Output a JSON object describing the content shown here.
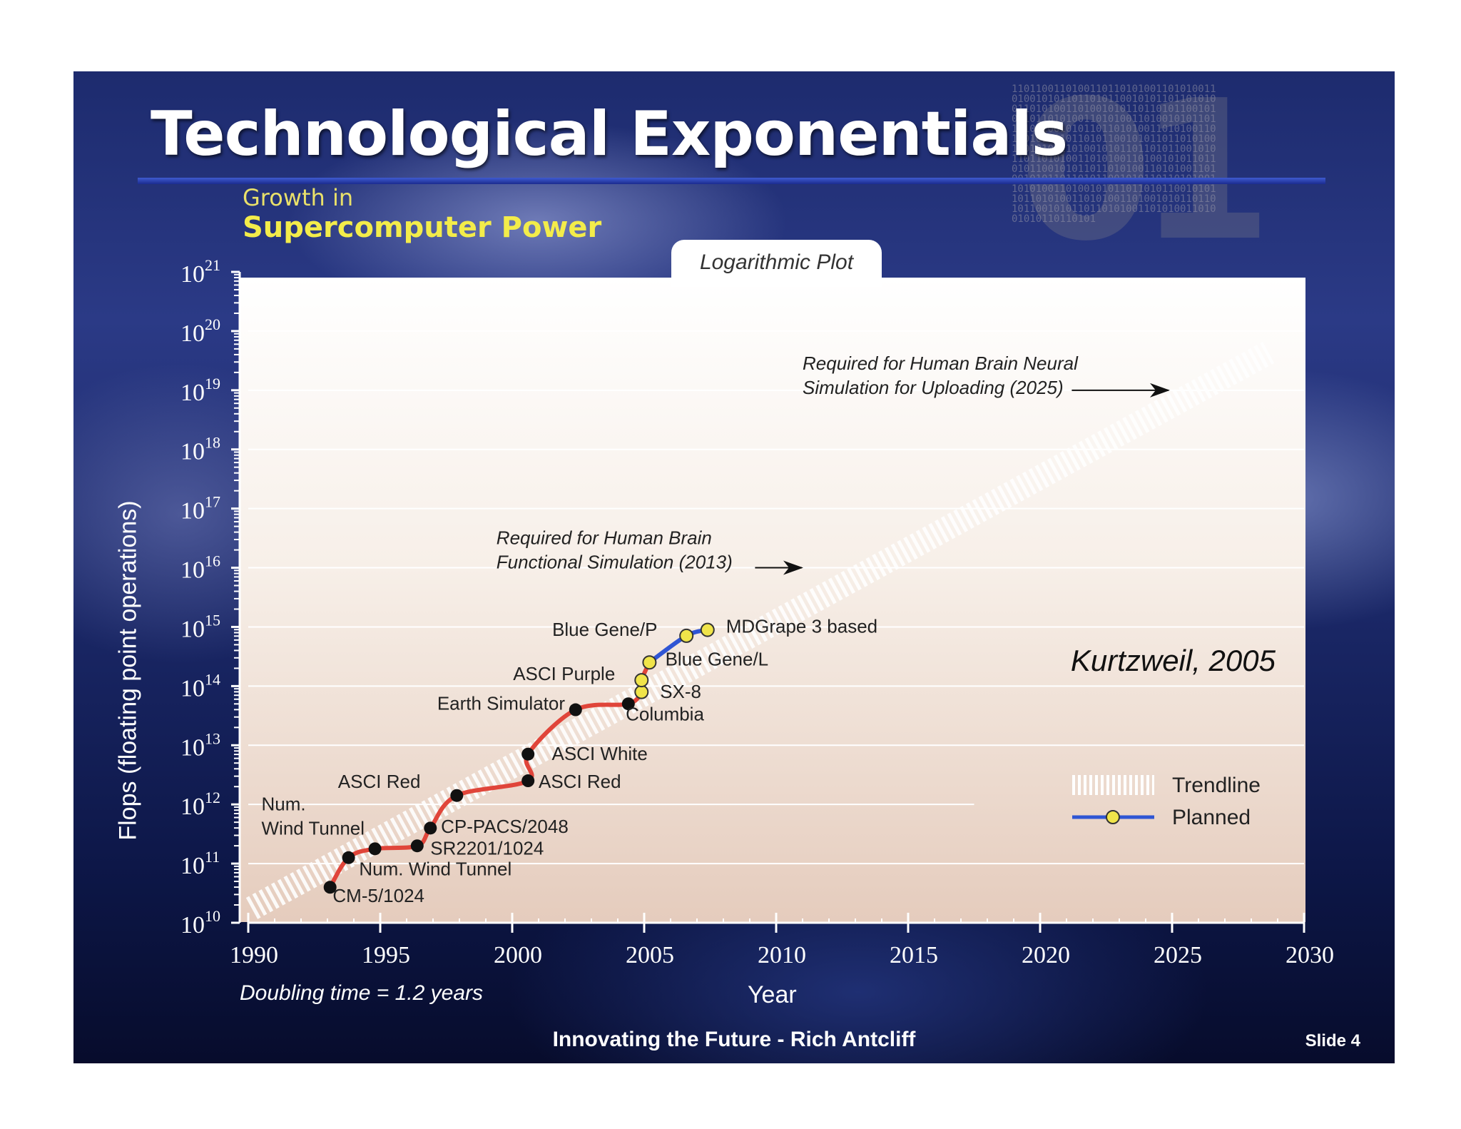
{
  "slide": {
    "title": "Technological Exponentials",
    "subtitle_line1": "Growth in",
    "subtitle_line2": "Supercomputer Power",
    "plot_tab": "Logarithmic Plot",
    "footer": "Innovating the Future - Rich Antcliff",
    "slide_number": "Slide 4",
    "background_color": "#1d2b6e"
  },
  "chart_data": {
    "type": "line",
    "title": "Growth in Supercomputer Power",
    "subtitle": "Logarithmic Plot",
    "xlabel": "Year",
    "ylabel": "Flops (floating point operations)",
    "xlim": [
      1990,
      2030
    ],
    "ylim_exponent": [
      10,
      21
    ],
    "y_scale": "log10",
    "x_ticks": [
      1990,
      1995,
      2000,
      2005,
      2010,
      2015,
      2020,
      2025,
      2030
    ],
    "y_tick_exponents": [
      10,
      11,
      12,
      13,
      14,
      15,
      16,
      17,
      18,
      19,
      20,
      21
    ],
    "y_tick_base": "10",
    "grid": true,
    "series": [
      {
        "name": "",
        "color": "#e0453a",
        "points": [
          {
            "x": 1993.1,
            "y_exponent": 10.6,
            "label": "CM-5/1024"
          },
          {
            "x": 1993.8,
            "y_exponent": 11.1,
            "label": "Num. Wind Tunnel"
          },
          {
            "x": 1994.8,
            "y_exponent": 11.25,
            "label": ""
          },
          {
            "x": 1996.4,
            "y_exponent": 11.3,
            "label": "SR2201/1024"
          },
          {
            "x": 1996.9,
            "y_exponent": 11.6,
            "label": "CP-PACS/2048"
          },
          {
            "x": 1997.9,
            "y_exponent": 12.15,
            "label": "ASCI Red"
          },
          {
            "x": 2000.6,
            "y_exponent": 12.4,
            "label": "ASCI Red"
          },
          {
            "x": 2000.6,
            "y_exponent": 12.85,
            "label": "ASCI White"
          },
          {
            "x": 2002.4,
            "y_exponent": 13.6,
            "label": "Earth Simulator"
          },
          {
            "x": 2004.4,
            "y_exponent": 13.7,
            "label": "Columbia"
          }
        ]
      },
      {
        "name": "Planned",
        "color": "#2f55d4",
        "marker_fill": "#f0e44a",
        "points": [
          {
            "x": 2004.9,
            "y_exponent": 13.9,
            "label": "SX-8"
          },
          {
            "x": 2004.9,
            "y_exponent": 14.1,
            "label": "ASCI Purple"
          },
          {
            "x": 2005.2,
            "y_exponent": 14.4,
            "label": "Blue Gene/L"
          },
          {
            "x": 2006.6,
            "y_exponent": 14.85,
            "label": "Blue Gene/P"
          },
          {
            "x": 2007.4,
            "y_exponent": 14.95,
            "label": "MDGrape 3 based"
          }
        ]
      }
    ],
    "trendline": {
      "name": "Trendline",
      "x": [
        1990,
        2030
      ],
      "y_exponent": [
        10.0,
        20.0
      ]
    },
    "point_labels": {
      "num_wind_tunnel_left": "Num.\nWind Tunnel",
      "asci_red_top": "ASCI Red",
      "cm5": "CM-5/1024",
      "num_wind_tunnel_bottom": "Num. Wind Tunnel",
      "sr2201": "SR2201/1024",
      "cppacs": "CP-PACS/2048",
      "asci_red_right": "ASCI Red",
      "asci_white": "ASCI White",
      "earth_simulator": "Earth Simulator",
      "sx8": "SX-8",
      "columbia": "Columbia",
      "asci_purple": "ASCI Purple",
      "blue_gene_l": "Blue Gene/L",
      "blue_gene_p": "Blue Gene/P",
      "mdgrape": "MDGrape 3 based"
    },
    "annotations": [
      {
        "text_line1": "Required for Human Brain",
        "text_line2": "Functional Simulation (2013)",
        "x": 2013,
        "y_exponent": 16.0
      },
      {
        "text_line1": "Required for Human Brain Neural",
        "text_line2": "Simulation for Uploading (2025)",
        "x": 2025,
        "y_exponent": 19.0
      }
    ],
    "citation": "Kurtzweil, 2005",
    "footnote": "Doubling time = 1.2 years",
    "legend": {
      "position": "bottom-right",
      "entries": [
        {
          "name": "Trendline"
        },
        {
          "name": "Planned"
        }
      ]
    }
  }
}
